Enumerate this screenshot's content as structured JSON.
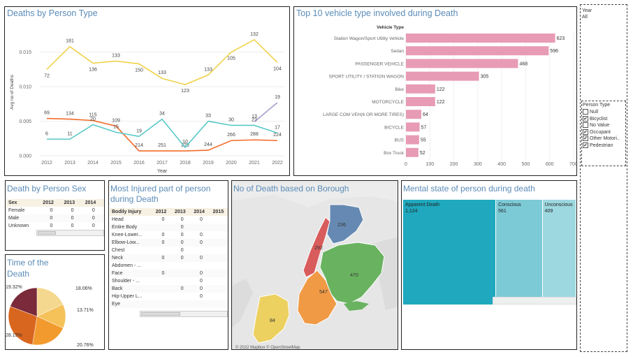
{
  "panels": {
    "deaths_by_person_type": "Deaths by Person Type",
    "top_vehicle": "Top 10 vehicle type involved during Death",
    "death_by_sex": "Death by Person Sex",
    "injured_part_line1": "Most Injured part of person",
    "injured_part_line2": "during Death",
    "borough": "No of Death based on Borough",
    "mental_state": "Mental state of person during death",
    "time_of_death_line1": "Time of the",
    "time_of_death_line2": "Death"
  },
  "filters": {
    "year_label": "Year",
    "year_value": "All",
    "person_type_label": "Person Type",
    "person_types": [
      {
        "label": "Null",
        "checked": false
      },
      {
        "label": "Bicyclist",
        "checked": true
      },
      {
        "label": "No Value",
        "checked": false
      },
      {
        "label": "Occupant",
        "checked": true
      },
      {
        "label": "Other Motori..",
        "checked": true
      },
      {
        "label": "Pedestrian",
        "checked": true
      }
    ]
  },
  "chart_data": [
    {
      "type": "line",
      "title": "Deaths by Person Type",
      "xlabel": "Year",
      "ylabel": "Avg no of Deaths",
      "x": [
        2012,
        2013,
        2014,
        2015,
        2016,
        2017,
        2018,
        2019,
        2020,
        2021,
        2022
      ],
      "yticks": [
        "0.000",
        "0.005",
        "0.010",
        "0.015"
      ],
      "ylim": [
        0,
        0.0185
      ],
      "series": [
        {
          "name": "Occupant",
          "color": "#f0d24a",
          "values": [
            0.0125,
            0.0158,
            0.0134,
            0.0137,
            0.0133,
            0.0112,
            0.0103,
            0.0117,
            0.015,
            0.0168,
            0.0135
          ],
          "labels": [
            "72",
            "181",
            "136",
            "133",
            "150",
            "133",
            "123",
            "133",
            "105",
            "132",
            "104"
          ]
        },
        {
          "name": "Bicyclist",
          "color": "#f26b2a",
          "values": [
            0.0054,
            0.0053,
            0.0051,
            0.0043,
            0.0007,
            0.0007,
            0.0007,
            0.0008,
            0.0022,
            0.0023,
            0.0022
          ],
          "labels": [
            "69",
            "134",
            "115",
            "109",
            "214",
            "251",
            "228",
            "244",
            "266",
            "288",
            "224"
          ]
        },
        {
          "name": "Pedestrian",
          "color": "#5ac8c8",
          "values": [
            0.0024,
            0.0024,
            0.0045,
            0.0034,
            0.0028,
            0.0053,
            0.0012,
            0.005,
            0.0044,
            0.0044,
            0.0033
          ],
          "labels": [
            "6",
            "11",
            "20",
            "15",
            "19",
            "34",
            "10",
            "33",
            "30",
            "22",
            "17"
          ]
        },
        {
          "name": "Other Motorist",
          "color": "#a89ccc",
          "x": [
            2021,
            2022
          ],
          "values": [
            0.0049,
            0.0077
          ],
          "labels": [
            "13",
            "19"
          ]
        }
      ]
    },
    {
      "type": "bar",
      "title": "Top 10 vehicle type involved during Death",
      "ylabel": "Vehicle Type",
      "categories": [
        "Station Wagon/Sport Utility Vehicle",
        "Sedan",
        "PASSENGER VEHICLE",
        "SPORT UTILITY / STATION WAGON",
        "Bike",
        "MOTORCYCLE",
        "LARGE COM VEH(6 OR MORE TIRES)",
        "BICYCLE",
        "BUS",
        "Box Truck"
      ],
      "values": [
        623,
        596,
        468,
        305,
        122,
        122,
        64,
        57,
        55,
        52
      ],
      "xticks": [
        "0",
        "100",
        "200",
        "300",
        "400",
        "500",
        "600",
        "700"
      ],
      "xlim": [
        0,
        700
      ],
      "color": "#e89bb5"
    },
    {
      "type": "pie",
      "title": "Time of the Death",
      "labels": [
        "18.06%",
        "13.71%",
        "20.76%",
        "28.15%",
        "19.32%"
      ],
      "values": [
        18.06,
        13.71,
        20.76,
        28.15,
        19.32
      ],
      "colors": [
        "#f5d88f",
        "#f5c25a",
        "#f29a2e",
        "#d9661f",
        "#7a2a3a"
      ]
    },
    {
      "type": "heatmap",
      "title": "Mental state of person during death",
      "categories": [
        "Apparent Death",
        "Conscious",
        "Unconscious"
      ],
      "values": [
        1124,
        561,
        409
      ],
      "labels": [
        "1,124",
        "561",
        "409"
      ],
      "colors": [
        "#1fa8be",
        "#7ccad6",
        "#9dd8e0"
      ]
    }
  ],
  "sex_table": {
    "headers": [
      "Sex",
      "2012",
      "2013",
      "2014"
    ],
    "rows": [
      [
        "Female",
        "0",
        "0",
        "0"
      ],
      [
        "Male",
        "0",
        "0",
        "0"
      ],
      [
        "Unknown",
        "0",
        "0",
        "0"
      ]
    ]
  },
  "injury_table": {
    "headers": [
      "Bodily Injury",
      "2012",
      "2013",
      "2014",
      "2015"
    ],
    "rows": [
      [
        "Head",
        "0",
        "0",
        "0",
        ""
      ],
      [
        "Entire Body",
        "",
        "0",
        "",
        ""
      ],
      [
        "Knee-Lower...",
        "0",
        "0",
        "0",
        ""
      ],
      [
        "Elbow-Low...",
        "0",
        "0",
        "0",
        ""
      ],
      [
        "Chest",
        "",
        "0",
        "",
        ""
      ],
      [
        "Neck",
        "0",
        "0",
        "0",
        ""
      ],
      [
        "Abdomen - ...",
        "",
        "",
        "",
        ""
      ],
      [
        "Face",
        "0",
        "",
        "0",
        ""
      ],
      [
        "Shoulder - ...",
        "",
        "",
        "0",
        ""
      ],
      [
        "Back",
        "",
        "0",
        "0",
        ""
      ],
      [
        "Hip-Upper L...",
        "",
        "",
        "0",
        ""
      ],
      [
        "Eye",
        "",
        "",
        "",
        ""
      ]
    ]
  },
  "borough_map": {
    "values": {
      "bronx": "236",
      "manhattan": "292",
      "queens": "470",
      "brooklyn": "547",
      "staten_island": "84"
    },
    "attribution": "© 2022 Mapbox © OpenStreetMap"
  }
}
